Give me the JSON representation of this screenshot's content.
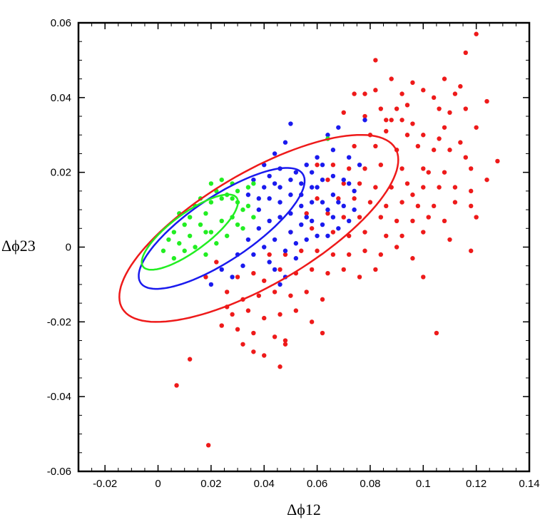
{
  "chart_data": {
    "type": "scatter",
    "xlabel": "Δϕ12",
    "ylabel": "Δϕ23",
    "xlim": [
      -0.03,
      0.14
    ],
    "ylim": [
      -0.06,
      0.06
    ],
    "xticks": [
      "-0.02",
      "0",
      "0.02",
      "0.04",
      "0.06",
      "0.08",
      "0.1",
      "0.12",
      "0.14"
    ],
    "yticks": [
      "-0.06",
      "-0.04",
      "-0.02",
      "0",
      "0.02",
      "0.04",
      "0.06"
    ],
    "grid": false,
    "colors": {
      "inner": "#22ee22",
      "middle": "#1a1aee",
      "outer": "#ee1a1a"
    },
    "contours": [
      {
        "color": "#ee1a1a",
        "cx": 0.038,
        "cy": 0.005,
        "a": 0.056,
        "b": 0.016,
        "angle_deg": 21
      },
      {
        "color": "#1a1aee",
        "cx": 0.024,
        "cy": 0.005,
        "a": 0.034,
        "b": 0.0092,
        "angle_deg": 24
      },
      {
        "color": "#22ee22",
        "cx": 0.012,
        "cy": 0.004,
        "a": 0.02,
        "b": 0.0055,
        "angle_deg": 26
      }
    ],
    "series": [
      {
        "color": "#22ee22",
        "points": [
          [
            0.014,
            0.011
          ],
          [
            0.018,
            0.009
          ],
          [
            0.02,
            0.012
          ],
          [
            0.024,
            0.013
          ],
          [
            0.028,
            0.013
          ],
          [
            0.03,
            0.012
          ],
          [
            0.026,
            0.014
          ],
          [
            0.022,
            0.015
          ],
          [
            0.01,
            0.006
          ],
          [
            0.004,
            0.002
          ],
          [
            0.006,
            0.004
          ],
          [
            0.008,
            0.001
          ],
          [
            0.012,
            0.003
          ],
          [
            0.016,
            0.006
          ],
          [
            0.02,
            0.004
          ],
          [
            0.024,
            0.007
          ],
          [
            0.028,
            0.008
          ],
          [
            0.032,
            0.01
          ],
          [
            0.03,
            0.015
          ],
          [
            0.034,
            0.016
          ],
          [
            0.036,
            0.017
          ],
          [
            0.014,
            0.0
          ],
          [
            0.018,
            -0.002
          ],
          [
            0.022,
            0.001
          ],
          [
            0.026,
            0.003
          ],
          [
            0.01,
            -0.001
          ],
          [
            0.006,
            -0.003
          ],
          [
            0.002,
            -0.001
          ],
          [
            0.032,
            0.005
          ],
          [
            0.034,
            0.011
          ],
          [
            0.012,
            0.008
          ],
          [
            0.016,
            0.013
          ],
          [
            0.02,
            0.017
          ],
          [
            0.024,
            0.018
          ],
          [
            0.028,
            0.017
          ],
          [
            0.064,
            0.029
          ],
          [
            0.036,
            0.008
          ],
          [
            0.008,
            0.009
          ],
          [
            0.018,
            0.004
          ],
          [
            0.03,
            0.006
          ]
        ]
      },
      {
        "color": "#1a1aee",
        "points": [
          [
            0.05,
            0.033
          ],
          [
            0.064,
            0.03
          ],
          [
            0.068,
            0.032
          ],
          [
            0.078,
            0.034
          ],
          [
            0.06,
            0.024
          ],
          [
            0.056,
            0.022
          ],
          [
            0.052,
            0.02
          ],
          [
            0.046,
            0.021
          ],
          [
            0.042,
            0.019
          ],
          [
            0.04,
            0.016
          ],
          [
            0.046,
            0.016
          ],
          [
            0.05,
            0.014
          ],
          [
            0.054,
            0.017
          ],
          [
            0.058,
            0.02
          ],
          [
            0.062,
            0.018
          ],
          [
            0.066,
            0.019
          ],
          [
            0.07,
            0.018
          ],
          [
            0.072,
            0.017
          ],
          [
            0.074,
            0.015
          ],
          [
            0.066,
            0.014
          ],
          [
            0.062,
            0.012
          ],
          [
            0.058,
            0.012
          ],
          [
            0.054,
            0.011
          ],
          [
            0.05,
            0.009
          ],
          [
            0.046,
            0.008
          ],
          [
            0.042,
            0.007
          ],
          [
            0.038,
            0.005
          ],
          [
            0.034,
            0.002
          ],
          [
            0.038,
            0.01
          ],
          [
            0.042,
            0.013
          ],
          [
            0.046,
            0.012
          ],
          [
            0.05,
            0.004
          ],
          [
            0.054,
            0.006
          ],
          [
            0.058,
            0.007
          ],
          [
            0.062,
            0.006
          ],
          [
            0.066,
            0.008
          ],
          [
            0.07,
            0.011
          ],
          [
            0.074,
            0.01
          ],
          [
            0.04,
            0.0
          ],
          [
            0.044,
            0.002
          ],
          [
            0.048,
            -0.001
          ],
          [
            0.052,
            0.001
          ],
          [
            0.056,
            0.002
          ],
          [
            0.06,
            0.003
          ],
          [
            0.064,
            0.003
          ],
          [
            0.068,
            0.005
          ],
          [
            0.036,
            -0.002
          ],
          [
            0.032,
            -0.005
          ],
          [
            0.028,
            -0.008
          ],
          [
            0.02,
            -0.01
          ],
          [
            0.024,
            -0.006
          ],
          [
            0.03,
            -0.002
          ],
          [
            0.044,
            -0.006
          ],
          [
            0.042,
            -0.004
          ],
          [
            0.048,
            -0.008
          ],
          [
            0.046,
            -0.01
          ],
          [
            0.052,
            -0.003
          ],
          [
            0.056,
            0.008
          ],
          [
            0.072,
            0.024
          ],
          [
            0.076,
            0.022
          ],
          [
            0.044,
            0.025
          ],
          [
            0.048,
            0.028
          ],
          [
            0.066,
            0.026
          ],
          [
            0.06,
            0.016
          ],
          [
            0.034,
            0.014
          ],
          [
            0.036,
            0.018
          ],
          [
            0.04,
            0.022
          ],
          [
            0.054,
            0.014
          ],
          [
            0.058,
            0.016
          ],
          [
            0.05,
            0.018
          ],
          [
            0.062,
            0.022
          ],
          [
            0.068,
            0.012
          ],
          [
            0.072,
            0.007
          ],
          [
            0.064,
            0.01
          ],
          [
            0.038,
            0.013
          ],
          [
            0.044,
            0.017
          ]
        ]
      },
      {
        "color": "#ee1a1a",
        "points": [
          [
            0.12,
            0.057
          ],
          [
            0.116,
            0.052
          ],
          [
            0.082,
            0.05
          ],
          [
            0.088,
            0.045
          ],
          [
            0.096,
            0.044
          ],
          [
            0.108,
            0.045
          ],
          [
            0.114,
            0.043
          ],
          [
            0.074,
            0.041
          ],
          [
            0.078,
            0.041
          ],
          [
            0.082,
            0.042
          ],
          [
            0.092,
            0.041
          ],
          [
            0.1,
            0.042
          ],
          [
            0.104,
            0.04
          ],
          [
            0.112,
            0.041
          ],
          [
            0.124,
            0.039
          ],
          [
            0.084,
            0.037
          ],
          [
            0.09,
            0.037
          ],
          [
            0.094,
            0.038
          ],
          [
            0.106,
            0.037
          ],
          [
            0.116,
            0.037
          ],
          [
            0.07,
            0.036
          ],
          [
            0.078,
            0.035
          ],
          [
            0.086,
            0.034
          ],
          [
            0.088,
            0.034
          ],
          [
            0.092,
            0.034
          ],
          [
            0.096,
            0.033
          ],
          [
            0.108,
            0.032
          ],
          [
            0.12,
            0.032
          ],
          [
            0.08,
            0.03
          ],
          [
            0.086,
            0.031
          ],
          [
            0.094,
            0.03
          ],
          [
            0.1,
            0.03
          ],
          [
            0.106,
            0.029
          ],
          [
            0.114,
            0.028
          ],
          [
            0.074,
            0.027
          ],
          [
            0.082,
            0.027
          ],
          [
            0.09,
            0.026
          ],
          [
            0.098,
            0.027
          ],
          [
            0.104,
            0.026
          ],
          [
            0.11,
            0.026
          ],
          [
            0.116,
            0.024
          ],
          [
            0.128,
            0.023
          ],
          [
            0.06,
            0.022
          ],
          [
            0.066,
            0.022
          ],
          [
            0.072,
            0.021
          ],
          [
            0.078,
            0.021
          ],
          [
            0.084,
            0.022
          ],
          [
            0.092,
            0.021
          ],
          [
            0.1,
            0.021
          ],
          [
            0.108,
            0.02
          ],
          [
            0.118,
            0.021
          ],
          [
            0.124,
            0.018
          ],
          [
            0.064,
            0.018
          ],
          [
            0.07,
            0.017
          ],
          [
            0.076,
            0.017
          ],
          [
            0.082,
            0.016
          ],
          [
            0.088,
            0.016
          ],
          [
            0.094,
            0.017
          ],
          [
            0.1,
            0.016
          ],
          [
            0.106,
            0.016
          ],
          [
            0.112,
            0.016
          ],
          [
            0.118,
            0.015
          ],
          [
            0.06,
            0.013
          ],
          [
            0.068,
            0.013
          ],
          [
            0.074,
            0.013
          ],
          [
            0.08,
            0.012
          ],
          [
            0.086,
            0.011
          ],
          [
            0.092,
            0.012
          ],
          [
            0.098,
            0.011
          ],
          [
            0.104,
            0.011
          ],
          [
            0.112,
            0.012
          ],
          [
            0.118,
            0.011
          ],
          [
            0.056,
            0.009
          ],
          [
            0.064,
            0.009
          ],
          [
            0.07,
            0.008
          ],
          [
            0.076,
            0.008
          ],
          [
            0.084,
            0.008
          ],
          [
            0.09,
            0.007
          ],
          [
            0.096,
            0.007
          ],
          [
            0.102,
            0.008
          ],
          [
            0.108,
            0.007
          ],
          [
            0.05,
            0.004
          ],
          [
            0.058,
            0.005
          ],
          [
            0.066,
            0.004
          ],
          [
            0.072,
            0.003
          ],
          [
            0.078,
            0.004
          ],
          [
            0.086,
            0.003
          ],
          [
            0.092,
            0.003
          ],
          [
            0.1,
            0.004
          ],
          [
            0.11,
            0.002
          ],
          [
            0.042,
            -0.002
          ],
          [
            0.048,
            -0.002
          ],
          [
            0.054,
            -0.001
          ],
          [
            0.06,
            -0.001
          ],
          [
            0.066,
            -0.002
          ],
          [
            0.072,
            -0.002
          ],
          [
            0.078,
            -0.001
          ],
          [
            0.084,
            -0.002
          ],
          [
            0.09,
            0.0
          ],
          [
            0.096,
            -0.003
          ],
          [
            0.118,
            -0.001
          ],
          [
            0.03,
            -0.008
          ],
          [
            0.036,
            -0.007
          ],
          [
            0.04,
            -0.009
          ],
          [
            0.046,
            -0.006
          ],
          [
            0.052,
            -0.007
          ],
          [
            0.058,
            -0.006
          ],
          [
            0.064,
            -0.007
          ],
          [
            0.07,
            -0.006
          ],
          [
            0.076,
            -0.008
          ],
          [
            0.082,
            -0.006
          ],
          [
            0.1,
            -0.008
          ],
          [
            0.026,
            -0.012
          ],
          [
            0.032,
            -0.014
          ],
          [
            0.038,
            -0.013
          ],
          [
            0.044,
            -0.012
          ],
          [
            0.05,
            -0.013
          ],
          [
            0.056,
            -0.012
          ],
          [
            0.062,
            -0.014
          ],
          [
            0.028,
            -0.018
          ],
          [
            0.034,
            -0.017
          ],
          [
            0.04,
            -0.019
          ],
          [
            0.046,
            -0.018
          ],
          [
            0.052,
            -0.017
          ],
          [
            0.058,
            -0.02
          ],
          [
            0.024,
            -0.021
          ],
          [
            0.03,
            -0.022
          ],
          [
            0.036,
            -0.023
          ],
          [
            0.044,
            -0.024
          ],
          [
            0.048,
            -0.025
          ],
          [
            0.062,
            -0.023
          ],
          [
            0.036,
            -0.028
          ],
          [
            0.04,
            -0.029
          ],
          [
            0.048,
            -0.026
          ],
          [
            0.046,
            -0.032
          ],
          [
            0.012,
            -0.03
          ],
          [
            0.007,
            -0.037
          ],
          [
            0.019,
            -0.053
          ],
          [
            0.105,
            -0.023
          ],
          [
            0.032,
            -0.026
          ],
          [
            0.026,
            -0.016
          ],
          [
            0.018,
            -0.008
          ],
          [
            0.022,
            -0.004
          ],
          [
            0.12,
            0.008
          ],
          [
            0.096,
            0.014
          ],
          [
            0.102,
            0.02
          ],
          [
            0.11,
            0.036
          ]
        ]
      }
    ]
  }
}
